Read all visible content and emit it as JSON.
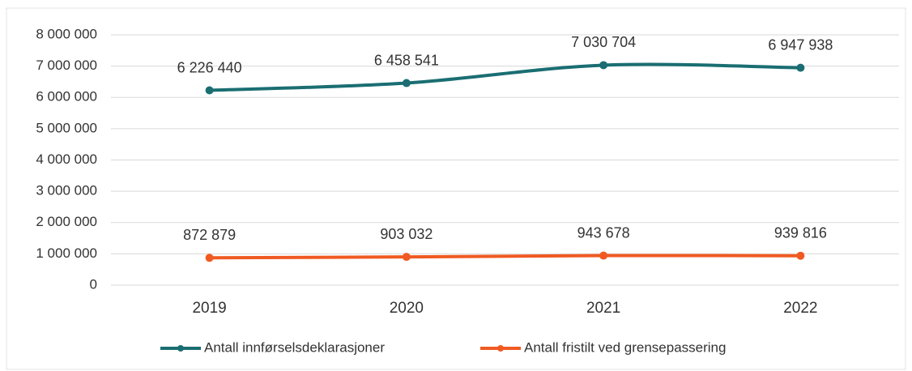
{
  "chart_data": {
    "type": "line",
    "categories": [
      "2019",
      "2020",
      "2021",
      "2022"
    ],
    "series": [
      {
        "name": "Antall innførselsdeklarasjoner",
        "color": "#1a6e72",
        "values": [
          6226440,
          6458541,
          7030704,
          6947938
        ],
        "value_labels": [
          "6 226 440",
          "6 458 541",
          "7 030 704",
          "6 947 938"
        ]
      },
      {
        "name": "Antall fristilt ved grensepassering",
        "color": "#f05a22",
        "values": [
          872879,
          903032,
          943678,
          939816
        ],
        "value_labels": [
          "872 879",
          "903 032",
          "943 678",
          "939 816"
        ]
      }
    ],
    "ylim": [
      0,
      8000000
    ],
    "yticks": [
      {
        "value": 0,
        "label": "0"
      },
      {
        "value": 1000000,
        "label": "1 000 000"
      },
      {
        "value": 2000000,
        "label": "2 000 000"
      },
      {
        "value": 3000000,
        "label": "3 000 000"
      },
      {
        "value": 4000000,
        "label": "4 000 000"
      },
      {
        "value": 5000000,
        "label": "5 000 000"
      },
      {
        "value": 6000000,
        "label": "6 000 000"
      },
      {
        "value": 7000000,
        "label": "7 000 000"
      },
      {
        "value": 8000000,
        "label": "8 000 000"
      }
    ],
    "grid": true,
    "legend": "bottom"
  }
}
